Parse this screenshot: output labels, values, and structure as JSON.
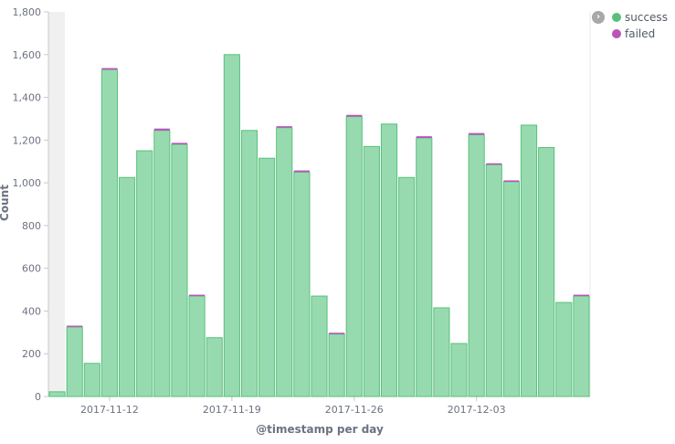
{
  "chart_data": {
    "type": "bar",
    "stacked": true,
    "xlabel": "@timestamp per day",
    "ylabel": "Count",
    "ylim": [
      0,
      1800
    ],
    "yticks": [
      0,
      200,
      400,
      600,
      800,
      1000,
      1200,
      1400,
      1600,
      1800
    ],
    "ytick_labels": [
      "0",
      "200",
      "400",
      "600",
      "800",
      "1,000",
      "1,200",
      "1,400",
      "1,600",
      "1,800"
    ],
    "xtick_labels": [
      {
        "label": "2017-11-12",
        "index": 3
      },
      {
        "label": "2017-11-19",
        "index": 10
      },
      {
        "label": "2017-11-26",
        "index": 17
      },
      {
        "label": "2017-12-03",
        "index": 24
      }
    ],
    "categories": [
      "2017-11-09",
      "2017-11-10",
      "2017-11-11",
      "2017-11-12",
      "2017-11-13",
      "2017-11-14",
      "2017-11-15",
      "2017-11-16",
      "2017-11-17",
      "2017-11-18",
      "2017-11-19",
      "2017-11-20",
      "2017-11-21",
      "2017-11-22",
      "2017-11-23",
      "2017-11-24",
      "2017-11-25",
      "2017-11-26",
      "2017-11-27",
      "2017-11-28",
      "2017-11-29",
      "2017-11-30",
      "2017-12-01",
      "2017-12-02",
      "2017-12-03",
      "2017-12-04",
      "2017-12-05",
      "2017-12-06",
      "2017-12-07",
      "2017-12-08",
      "2017-12-09"
    ],
    "series": [
      {
        "name": "success",
        "color": "#57c17b",
        "fill": "#98dab0",
        "values": [
          22,
          325,
          155,
          1530,
          1025,
          1150,
          1245,
          1180,
          470,
          275,
          1600,
          1245,
          1115,
          1258,
          1050,
          470,
          292,
          1310,
          1170,
          1275,
          1025,
          1210,
          415,
          248,
          1225,
          1085,
          1005,
          1270,
          1165,
          440,
          470
        ]
      },
      {
        "name": "failed",
        "color": "#bc52bc",
        "fill": "#bc52bc",
        "values": [
          0,
          6,
          0,
          7,
          0,
          0,
          9,
          7,
          5,
          0,
          0,
          0,
          0,
          7,
          8,
          0,
          6,
          8,
          0,
          0,
          0,
          8,
          0,
          0,
          8,
          6,
          6,
          0,
          0,
          0,
          5
        ]
      }
    ],
    "grid": false,
    "legend_position": "top-right"
  },
  "legend": {
    "toggle_icon": "chevron-right-icon",
    "items": [
      {
        "label": "success",
        "color": "#57c17b"
      },
      {
        "label": "failed",
        "color": "#bc52bc"
      }
    ]
  }
}
